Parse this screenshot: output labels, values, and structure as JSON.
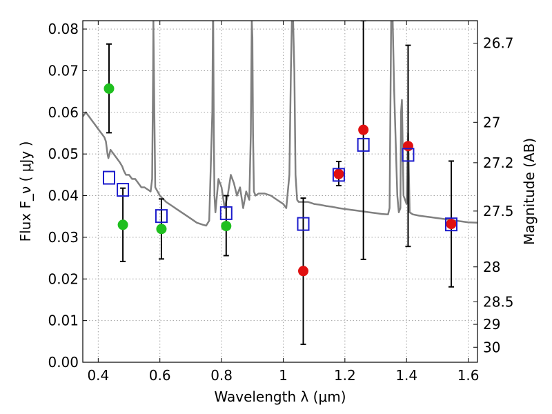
{
  "chart_data": {
    "type": "scatter",
    "title": "",
    "xlabel": "Wavelength  λ (μm)",
    "ylabel": "Flux  F_ν  ( μJy )",
    "ylabel_right": "Magnitude (AB)",
    "xlim": [
      0.35,
      1.63
    ],
    "ylim": [
      0.0,
      0.082
    ],
    "grid": true,
    "x_ticks": [
      0.4,
      0.6,
      0.8,
      1.0,
      1.2,
      1.4,
      1.6
    ],
    "x_tick_labels": [
      "0.4",
      "0.6",
      "0.8",
      "1",
      "1.2",
      "1.4",
      "1.6"
    ],
    "y_ticks": [
      0.0,
      0.01,
      0.02,
      0.03,
      0.04,
      0.05,
      0.06,
      0.07,
      0.08
    ],
    "y_tick_labels": [
      "0.00",
      "0.01",
      "0.02",
      "0.03",
      "0.04",
      "0.05",
      "0.06",
      "0.07",
      "0.08"
    ],
    "right_ticks": [
      {
        "label": "26.7",
        "flux": 0.0766
      },
      {
        "label": "27",
        "flux": 0.0576
      },
      {
        "label": "27.2",
        "flux": 0.0479
      },
      {
        "label": "27.5",
        "flux": 0.0363
      },
      {
        "label": "28",
        "flux": 0.0229
      },
      {
        "label": "28.5",
        "flux": 0.0145
      },
      {
        "label": "29",
        "flux": 0.0091
      },
      {
        "label": "30",
        "flux": 0.0036
      }
    ],
    "colors": {
      "green": "#1fbf1f",
      "red": "#e01010",
      "blue": "#1c1ccc",
      "sed": "#808080",
      "errorbar": "#000000",
      "grid": "#a0a0a0"
    },
    "series": [
      {
        "marker": "circle",
        "color": "green",
        "x": [
          0.435,
          0.48,
          0.605,
          0.815
        ],
        "y": [
          0.0657,
          0.033,
          0.032,
          0.0327
        ],
        "yerr_low": [
          0.0551,
          0.0242,
          0.0248,
          0.0256
        ],
        "yerr_high": [
          0.0764,
          0.0418,
          0.0392,
          0.04
        ]
      },
      {
        "marker": "circle",
        "color": "red",
        "x": [
          1.065,
          1.18,
          1.26,
          1.405,
          1.545
        ],
        "y": [
          0.0219,
          0.0452,
          0.0558,
          0.0519,
          0.0332
        ],
        "yerr_low": [
          0.0043,
          0.0424,
          0.0247,
          0.0278,
          0.0181
        ],
        "yerr_high": [
          0.0394,
          0.0482,
          0.082,
          0.0761,
          0.0483
        ]
      },
      {
        "marker": "square",
        "color": "blue",
        "x": [
          0.435,
          0.48,
          0.605,
          0.815,
          1.065,
          1.18,
          1.26,
          1.405,
          1.545
        ],
        "y": [
          0.0443,
          0.0414,
          0.0351,
          0.0358,
          0.0332,
          0.045,
          0.0522,
          0.0498,
          0.0331
        ]
      },
      {
        "marker": "line",
        "color": "sed",
        "x": [
          0.35,
          0.36,
          0.37,
          0.38,
          0.39,
          0.4,
          0.41,
          0.42,
          0.425,
          0.43,
          0.433,
          0.44,
          0.45,
          0.46,
          0.47,
          0.478,
          0.483,
          0.49,
          0.5,
          0.51,
          0.52,
          0.53,
          0.54,
          0.55,
          0.56,
          0.57,
          0.575,
          0.578,
          0.579,
          0.582,
          0.585,
          0.6,
          0.62,
          0.64,
          0.66,
          0.68,
          0.7,
          0.72,
          0.74,
          0.75,
          0.76,
          0.77,
          0.772,
          0.773,
          0.775,
          0.777,
          0.78,
          0.785,
          0.79,
          0.8,
          0.81,
          0.82,
          0.83,
          0.84,
          0.85,
          0.86,
          0.87,
          0.88,
          0.89,
          0.895,
          0.898,
          0.9,
          0.902,
          0.905,
          0.91,
          0.92,
          0.94,
          0.96,
          0.98,
          1.0,
          1.01,
          1.02,
          1.025,
          1.028,
          1.032,
          1.036,
          1.04,
          1.045,
          1.05,
          1.06,
          1.07,
          1.08,
          1.1,
          1.12,
          1.14,
          1.16,
          1.18,
          1.2,
          1.22,
          1.24,
          1.26,
          1.28,
          1.3,
          1.32,
          1.34,
          1.345,
          1.35,
          1.355,
          1.36,
          1.37,
          1.375,
          1.38,
          1.382,
          1.385,
          1.39,
          1.4,
          1.405,
          1.41,
          1.42,
          1.44,
          1.46,
          1.48,
          1.5,
          1.52,
          1.54,
          1.56,
          1.58,
          1.6,
          1.63
        ],
        "y": [
          0.059,
          0.06,
          0.059,
          0.058,
          0.057,
          0.056,
          0.055,
          0.054,
          0.053,
          0.05,
          0.049,
          0.051,
          0.05,
          0.049,
          0.048,
          0.047,
          0.046,
          0.045,
          0.045,
          0.044,
          0.044,
          0.043,
          0.042,
          0.042,
          0.0415,
          0.041,
          0.044,
          0.07,
          0.082,
          0.06,
          0.042,
          0.04,
          0.0385,
          0.0375,
          0.0365,
          0.0355,
          0.0345,
          0.0335,
          0.033,
          0.0328,
          0.034,
          0.06,
          0.082,
          0.082,
          0.055,
          0.04,
          0.036,
          0.04,
          0.044,
          0.042,
          0.037,
          0.04,
          0.045,
          0.043,
          0.04,
          0.042,
          0.037,
          0.041,
          0.039,
          0.055,
          0.082,
          0.078,
          0.055,
          0.041,
          0.04,
          0.0405,
          0.0405,
          0.04,
          0.039,
          0.038,
          0.037,
          0.045,
          0.07,
          0.082,
          0.082,
          0.07,
          0.045,
          0.039,
          0.0385,
          0.0385,
          0.0385,
          0.0385,
          0.038,
          0.0378,
          0.0375,
          0.0373,
          0.037,
          0.0368,
          0.0366,
          0.0364,
          0.0362,
          0.036,
          0.0358,
          0.0356,
          0.0355,
          0.037,
          0.082,
          0.082,
          0.065,
          0.04,
          0.036,
          0.037,
          0.06,
          0.063,
          0.04,
          0.038,
          0.055,
          0.036,
          0.0355,
          0.0352,
          0.035,
          0.0348,
          0.0346,
          0.0344,
          0.0342,
          0.034,
          0.0338,
          0.0336,
          0.0335
        ]
      }
    ]
  }
}
